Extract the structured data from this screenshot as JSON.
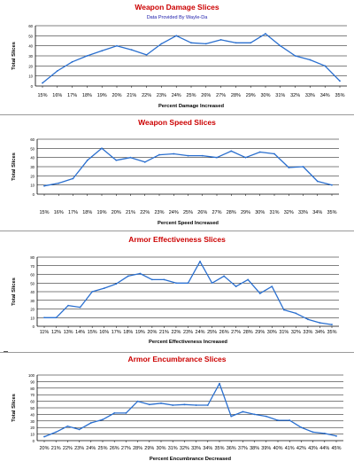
{
  "credit": "Data Provided By WayIe-Da",
  "colors": {
    "title": "#cc0000",
    "credit": "#1a1aaa",
    "line": "#2a6fcf",
    "axis": "#000000",
    "grid": "#000000"
  },
  "chart_data": [
    {
      "type": "line",
      "title": "Weapon Damage Slices",
      "xlabel": "Percent Damage Increased",
      "ylabel": "Total Slices",
      "ylim": [
        0,
        60
      ],
      "yticks": [
        "0",
        "10",
        "20",
        "30",
        "40",
        "50",
        "60"
      ],
      "categories": [
        "15%",
        "16%",
        "17%",
        "18%",
        "19%",
        "20%",
        "21%",
        "22%",
        "23%",
        "24%",
        "25%",
        "26%",
        "27%",
        "28%",
        "29%",
        "30%",
        "31%",
        "32%",
        "33%",
        "34%",
        "35%"
      ],
      "values": [
        3,
        15,
        24,
        30,
        35,
        40,
        36,
        31,
        42,
        50,
        43,
        42,
        46,
        43,
        43,
        52,
        40,
        30,
        26,
        20,
        5
      ],
      "grid": "horizontal"
    },
    {
      "type": "line",
      "title": "Weapon Speed Slices",
      "xlabel": "Percent Speed Increased",
      "ylabel": "Total Slices",
      "ylim": [
        0,
        60
      ],
      "yticks": [
        "0",
        "10",
        "20",
        "30",
        "40",
        "50",
        "60"
      ],
      "categories": [
        "15%",
        "16%",
        "17%",
        "18%",
        "19%",
        "20%",
        "21%",
        "22%",
        "23%",
        "24%",
        "25%",
        "26%",
        "27%",
        "28%",
        "29%",
        "30%",
        "31%",
        "32%",
        "33%",
        "34%",
        "35%"
      ],
      "values": [
        9,
        12,
        17,
        37,
        50,
        37,
        40,
        35,
        43,
        44,
        42,
        42,
        40,
        47,
        40,
        46,
        44,
        29,
        30,
        14,
        10
      ],
      "grid": "horizontal"
    },
    {
      "type": "line",
      "title": "Armor Effectiveness Slices",
      "xlabel": "Percent Effectiveness Increased",
      "ylabel": "Total Slices",
      "ylim": [
        0,
        80
      ],
      "yticks": [
        "0",
        "10",
        "20",
        "30",
        "40",
        "50",
        "60",
        "70",
        "80"
      ],
      "categories": [
        "11%",
        "12%",
        "13%",
        "14%",
        "15%",
        "16%",
        "17%",
        "18%",
        "19%",
        "20%",
        "21%",
        "22%",
        "23%",
        "24%",
        "25%",
        "26%",
        "27%",
        "28%",
        "29%",
        "30%",
        "31%",
        "32%",
        "33%",
        "34%",
        "35%"
      ],
      "values": [
        10,
        10,
        24,
        22,
        40,
        44,
        49,
        58,
        61,
        54,
        54,
        50,
        50,
        75,
        50,
        58,
        46,
        54,
        38,
        46,
        19,
        15,
        8,
        4,
        2
      ],
      "grid": "horizontal"
    },
    {
      "type": "line",
      "title": "Armor Encumbrance Slices",
      "xlabel": "Percent Encumbrance Decreased",
      "ylabel": "Total Slices",
      "ylim": [
        0,
        100
      ],
      "yticks": [
        "0",
        "10",
        "20",
        "30",
        "40",
        "50",
        "60",
        "70",
        "80",
        "90",
        "100"
      ],
      "categories": [
        "20%",
        "21%",
        "22%",
        "23%",
        "24%",
        "25%",
        "26%",
        "27%",
        "28%",
        "29%",
        "30%",
        "31%",
        "32%",
        "33%",
        "34%",
        "35%",
        "36%",
        "37%",
        "38%",
        "39%",
        "40%",
        "41%",
        "42%",
        "43%",
        "44%",
        "45%"
      ],
      "values": [
        6,
        13,
        22,
        17,
        27,
        32,
        42,
        42,
        60,
        55,
        57,
        54,
        55,
        54,
        54,
        87,
        37,
        44,
        40,
        37,
        31,
        31,
        20,
        13,
        11,
        7
      ],
      "grid": "horizontal"
    }
  ]
}
